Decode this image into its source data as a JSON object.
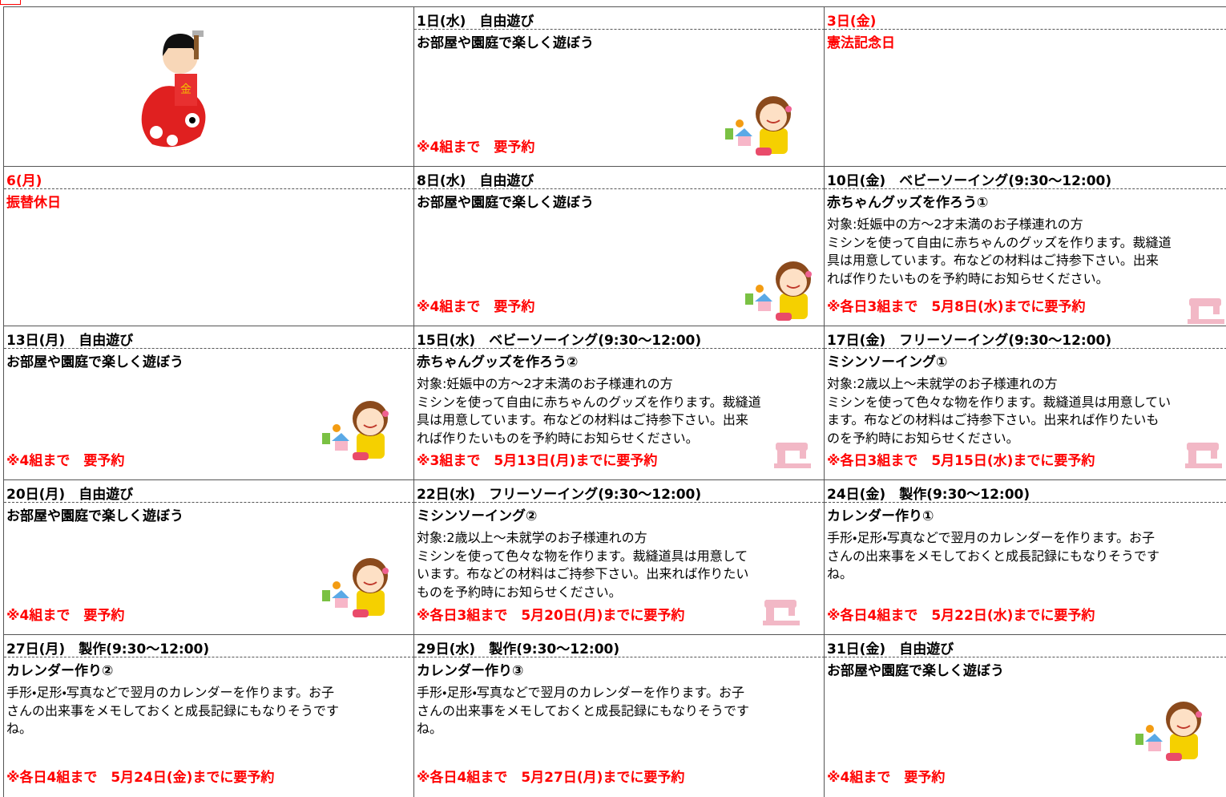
{
  "rows": [
    [
      null,
      {
        "header": "1日(水)　自由遊び",
        "title": "お部屋や園庭で楽しく遊ぼう",
        "note": "※4組まで　要予約"
      },
      {
        "header": "3日(金)",
        "title": "憲法記念日",
        "holiday": true
      }
    ],
    [
      {
        "header": "6(月)",
        "title": "振替休日",
        "holiday": true
      },
      {
        "header": "8日(水)　自由遊び",
        "title": "お部屋や園庭で楽しく遊ぼう",
        "note": "※4組まで　要予約"
      },
      {
        "header": "10日(金)　ベビーソーイング(9:30～12:00)",
        "title": "赤ちゃんグッズを作ろう①",
        "lines": [
          "対象:妊娠中の方～2才未満のお子様連れの方",
          "ミシンを使って自由に赤ちゃんのグッズを作ります。裁縫道",
          "具は用意しています。布などの材料はご持参下さい。出来",
          "れば作りたいものを予約時にお知らせください。"
        ],
        "note": "※各日3組まで　5月8日(水)までに要予約"
      }
    ],
    [
      {
        "header": "13日(月)　自由遊び",
        "title": "お部屋や園庭で楽しく遊ぼう",
        "note": "※4組まで　要予約"
      },
      {
        "header": "15日(水)　ベビーソーイング(9:30～12:00)",
        "title": "赤ちゃんグッズを作ろう②",
        "lines": [
          "対象:妊娠中の方～2才未満のお子様連れの方",
          "ミシンを使って自由に赤ちゃんのグッズを作ります。裁縫道",
          "具は用意しています。布などの材料はご持参下さい。出来",
          "れば作りたいものを予約時にお知らせください。"
        ],
        "note": "※3組まで　5月13日(月)までに要予約"
      },
      {
        "header": "17日(金)　フリーソーイング(9:30～12:00)",
        "title": "ミシンソーイング①",
        "lines": [
          "対象:2歳以上～未就学のお子様連れの方",
          "ミシンを使って色々な物を作ります。裁縫道具は用意してい",
          "ます。布などの材料はご持参下さい。出来れば作りたいも",
          "のを予約時にお知らせください。"
        ],
        "note": "※各日3組まで　5月15日(水)までに要予約"
      }
    ],
    [
      {
        "header": "20日(月)　自由遊び",
        "title": "お部屋や園庭で楽しく遊ぼう",
        "note": "※4組まで　要予約"
      },
      {
        "header": "22日(水)　フリーソーイング(9:30～12:00)",
        "title": "ミシンソーイング②",
        "lines": [
          "対象:2歳以上～未就学のお子様連れの方",
          "ミシンを使って色々な物を作ります。裁縫道具は用意して",
          "います。布などの材料はご持参下さい。出来れば作りたい",
          "ものを予約時にお知らせください。"
        ],
        "note": "※各日3組まで　5月20日(月)までに要予約"
      },
      {
        "header": "24日(金)　製作(9:30～12:00)",
        "title": "カレンダー作り①",
        "lines": [
          "手形・足形・写真などで翌月のカレンダーを作ります。お子",
          "さんの出来事をメモしておくと成長記録にもなりそうです",
          "ね。"
        ],
        "note": "※各日4組まで　5月22日(水)までに要予約"
      }
    ],
    [
      {
        "header": "27日(月)　製作(9:30～12:00)",
        "title": "カレンダー作り②",
        "lines": [
          "手形・足形・写真などで翌月のカレンダーを作ります。お子",
          "さんの出来事をメモしておくと成長記録にもなりそうです",
          "ね。"
        ],
        "note": "※各日4組まで　5月24日(金)までに要予約"
      },
      {
        "header": "29日(水)　製作(9:30～12:00)",
        "title": "カレンダー作り③",
        "lines": [
          "手形・足形・写真などで翌月のカレンダーを作ります。お子",
          "さんの出来事をメモしておくと成長記録にもなりそうです",
          "ね。"
        ],
        "note": "※各日4組まで　5月27日(月)までに要予約"
      },
      {
        "header": "31日(金)　自由遊び",
        "title": "お部屋や園庭で楽しく遊ぼう",
        "note": "※4組まで　要予約"
      }
    ]
  ]
}
